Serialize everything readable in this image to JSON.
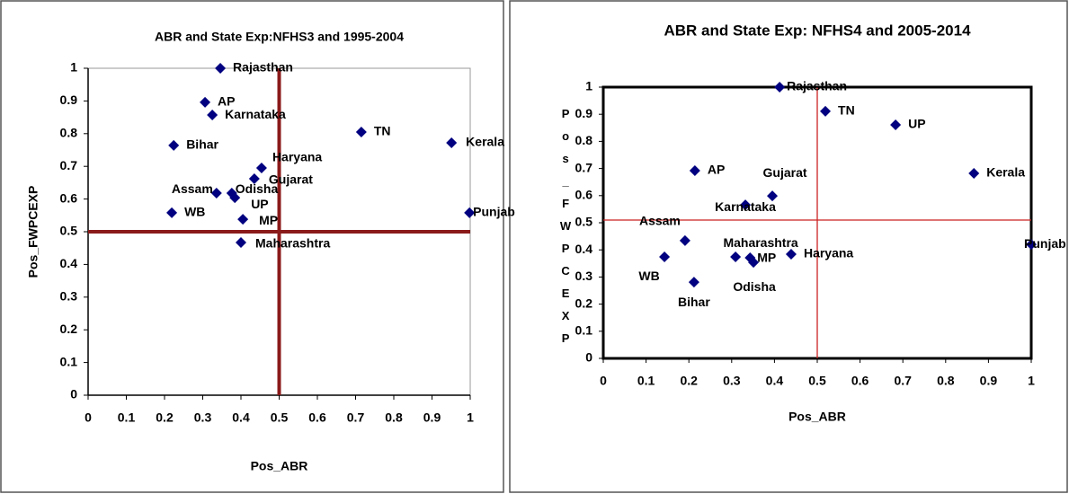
{
  "chart_data": [
    {
      "type": "scatter",
      "title": "ABR and State Exp:NFHS3 and 1995-2004",
      "xlabel": "Pos_ABR",
      "ylabel": "Pos_FWPCEXP",
      "labels": [
        "Rajasthan",
        "AP",
        "Karnataka",
        "TN",
        "Kerala",
        "Bihar",
        "Haryana",
        "Gujarat",
        "Assam",
        "Odisha",
        "UP",
        "WB",
        "Punjab",
        "MP",
        "Maharashtra"
      ],
      "x": [
        0.346,
        0.306,
        0.325,
        0.715,
        0.951,
        0.224,
        0.454,
        0.435,
        0.336,
        0.376,
        0.384,
        0.219,
        0.998,
        0.405,
        0.4
      ],
      "values": [
        1.0,
        0.896,
        0.857,
        0.805,
        0.772,
        0.764,
        0.695,
        0.662,
        0.618,
        0.618,
        0.604,
        0.558,
        0.558,
        0.538,
        0.467
      ],
      "color": "#000080",
      "xlim": [
        0,
        1
      ],
      "ylim": [
        0,
        1
      ],
      "xticks": [
        0,
        0.1,
        0.2,
        0.3,
        0.4,
        0.5,
        0.6,
        0.7,
        0.8,
        0.9,
        1
      ],
      "yticks": [
        0,
        0.1,
        0.2,
        0.3,
        0.4,
        0.5,
        0.6,
        0.7,
        0.8,
        0.9,
        1
      ],
      "vline": 0.5,
      "hline": 0.5,
      "refline_color": "#8b1a1a"
    },
    {
      "type": "scatter",
      "title": "ABR and State Exp: NFHS4 and 2005-2014",
      "xlabel": "Pos_ABR",
      "ylabel": "Pos_FWPCEXP",
      "labels": [
        "Rajasthan",
        "TN",
        "UP",
        "AP",
        "Kerala",
        "Gujarat",
        "Karnataka",
        "Punjab",
        "Assam",
        "WB",
        "Maharashtra",
        "Haryana",
        "MP",
        "Odisha",
        "Bihar"
      ],
      "x": [
        0.412,
        0.519,
        0.683,
        0.214,
        0.866,
        0.395,
        0.332,
        1.0,
        0.191,
        0.143,
        0.309,
        0.439,
        0.343,
        0.351,
        0.212
      ],
      "values": [
        1.0,
        0.911,
        0.861,
        0.692,
        0.682,
        0.599,
        0.566,
        0.42,
        0.434,
        0.374,
        0.374,
        0.384,
        0.371,
        0.354,
        0.281
      ],
      "color": "#000080",
      "xlim": [
        0,
        1
      ],
      "ylim": [
        0,
        1
      ],
      "xticks": [
        0,
        0.1,
        0.2,
        0.3,
        0.4,
        0.5,
        0.6,
        0.7,
        0.8,
        0.9,
        1
      ],
      "yticks": [
        0,
        0.1,
        0.2,
        0.3,
        0.4,
        0.5,
        0.6,
        0.7,
        0.8,
        0.9,
        1
      ],
      "vline": 0.5,
      "hline": 0.51,
      "refline_color": "#cc2222"
    }
  ]
}
